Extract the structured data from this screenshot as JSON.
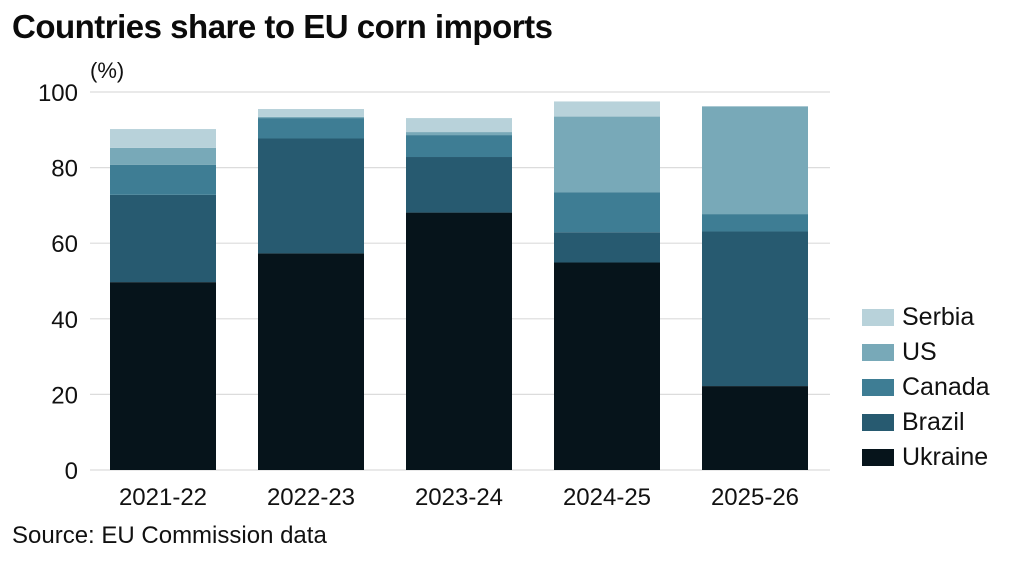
{
  "chart_data": {
    "type": "bar",
    "stacked": true,
    "title": "Countries share to EU corn imports",
    "ylabel": "(%)",
    "xlabel": "",
    "source": "Source: EU Commission data",
    "ylim": [
      0,
      100
    ],
    "yticks": [
      0,
      20,
      40,
      60,
      80,
      100
    ],
    "grid": true,
    "legend_position": "right",
    "categories": [
      "2021-22",
      "2022-23",
      "2023-24",
      "2024-25",
      "2025-26"
    ],
    "series": [
      {
        "name": "Ukraine",
        "color": "#06141b",
        "values": [
          49.7,
          57.3,
          68.1,
          54.9,
          22.2
        ]
      },
      {
        "name": "Brazil",
        "color": "#275a70",
        "values": [
          23.1,
          30.4,
          14.7,
          8.0,
          40.9
        ]
      },
      {
        "name": "Canada",
        "color": "#3e7d94",
        "values": [
          7.9,
          5.4,
          5.8,
          10.6,
          4.6
        ]
      },
      {
        "name": "US",
        "color": "#78a9b8",
        "values": [
          4.5,
          0.3,
          0.8,
          20.0,
          28.5
        ]
      },
      {
        "name": "Serbia",
        "color": "#b8d2da",
        "values": [
          5.0,
          2.1,
          3.7,
          4.0,
          0.0
        ]
      }
    ]
  }
}
